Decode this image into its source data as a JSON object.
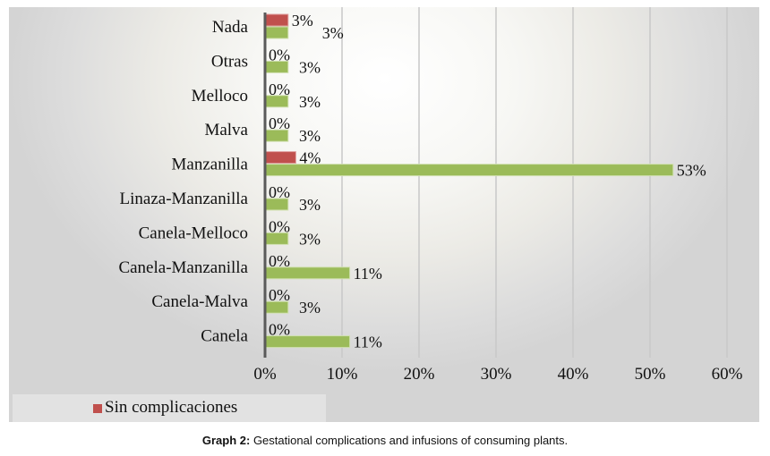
{
  "chart_data": {
    "type": "bar",
    "orientation": "horizontal",
    "categories": [
      "Nada",
      "Otras",
      "Melloco",
      "Malva",
      "Manzanilla",
      "Linaza-Manzanilla",
      "Canela-Melloco",
      "Canela-Manzanilla",
      "Canela-Malva",
      "Canela"
    ],
    "series": [
      {
        "name": "Sin complicaciones",
        "color": "#c0504d",
        "values": [
          3,
          0,
          0,
          0,
          4,
          0,
          0,
          0,
          0,
          0
        ],
        "labels": [
          "3%",
          "0%",
          "0%",
          "0%",
          "4%",
          "0%",
          "0%",
          "0%",
          "0%",
          "0%"
        ]
      },
      {
        "name": "",
        "color": "#9bbb59",
        "values": [
          3,
          3,
          3,
          3,
          53,
          3,
          3,
          11,
          3,
          11
        ],
        "labels": [
          "3%",
          "3%",
          "3%",
          "3%",
          "53%",
          "3%",
          "3%",
          "11%",
          "3%",
          "11%"
        ]
      }
    ],
    "xlim": [
      0,
      60
    ],
    "xticks": [
      "0%",
      "10%",
      "20%",
      "30%",
      "40%",
      "50%",
      "60%"
    ],
    "grid": true,
    "legend_position": "bottom-left"
  },
  "caption": {
    "label": "Graph 2:",
    "text": " Gestational complications and infusions of consuming plants."
  }
}
